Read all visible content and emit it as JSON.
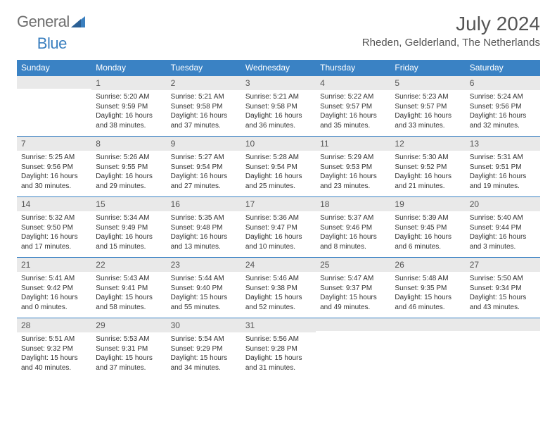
{
  "logo": {
    "text1": "General",
    "text2": "Blue"
  },
  "title": "July 2024",
  "location": "Rheden, Gelderland, The Netherlands",
  "colors": {
    "header_bg": "#3a82c4",
    "header_text": "#ffffff",
    "daynum_bg": "#e9e9e9",
    "border": "#3a82c4",
    "title_color": "#555555"
  },
  "weekdays": [
    "Sunday",
    "Monday",
    "Tuesday",
    "Wednesday",
    "Thursday",
    "Friday",
    "Saturday"
  ],
  "weeks": [
    [
      null,
      {
        "n": "1",
        "sr": "5:20 AM",
        "ss": "9:59 PM",
        "dl": "16 hours and 38 minutes."
      },
      {
        "n": "2",
        "sr": "5:21 AM",
        "ss": "9:58 PM",
        "dl": "16 hours and 37 minutes."
      },
      {
        "n": "3",
        "sr": "5:21 AM",
        "ss": "9:58 PM",
        "dl": "16 hours and 36 minutes."
      },
      {
        "n": "4",
        "sr": "5:22 AM",
        "ss": "9:57 PM",
        "dl": "16 hours and 35 minutes."
      },
      {
        "n": "5",
        "sr": "5:23 AM",
        "ss": "9:57 PM",
        "dl": "16 hours and 33 minutes."
      },
      {
        "n": "6",
        "sr": "5:24 AM",
        "ss": "9:56 PM",
        "dl": "16 hours and 32 minutes."
      }
    ],
    [
      {
        "n": "7",
        "sr": "5:25 AM",
        "ss": "9:56 PM",
        "dl": "16 hours and 30 minutes."
      },
      {
        "n": "8",
        "sr": "5:26 AM",
        "ss": "9:55 PM",
        "dl": "16 hours and 29 minutes."
      },
      {
        "n": "9",
        "sr": "5:27 AM",
        "ss": "9:54 PM",
        "dl": "16 hours and 27 minutes."
      },
      {
        "n": "10",
        "sr": "5:28 AM",
        "ss": "9:54 PM",
        "dl": "16 hours and 25 minutes."
      },
      {
        "n": "11",
        "sr": "5:29 AM",
        "ss": "9:53 PM",
        "dl": "16 hours and 23 minutes."
      },
      {
        "n": "12",
        "sr": "5:30 AM",
        "ss": "9:52 PM",
        "dl": "16 hours and 21 minutes."
      },
      {
        "n": "13",
        "sr": "5:31 AM",
        "ss": "9:51 PM",
        "dl": "16 hours and 19 minutes."
      }
    ],
    [
      {
        "n": "14",
        "sr": "5:32 AM",
        "ss": "9:50 PM",
        "dl": "16 hours and 17 minutes."
      },
      {
        "n": "15",
        "sr": "5:34 AM",
        "ss": "9:49 PM",
        "dl": "16 hours and 15 minutes."
      },
      {
        "n": "16",
        "sr": "5:35 AM",
        "ss": "9:48 PM",
        "dl": "16 hours and 13 minutes."
      },
      {
        "n": "17",
        "sr": "5:36 AM",
        "ss": "9:47 PM",
        "dl": "16 hours and 10 minutes."
      },
      {
        "n": "18",
        "sr": "5:37 AM",
        "ss": "9:46 PM",
        "dl": "16 hours and 8 minutes."
      },
      {
        "n": "19",
        "sr": "5:39 AM",
        "ss": "9:45 PM",
        "dl": "16 hours and 6 minutes."
      },
      {
        "n": "20",
        "sr": "5:40 AM",
        "ss": "9:44 PM",
        "dl": "16 hours and 3 minutes."
      }
    ],
    [
      {
        "n": "21",
        "sr": "5:41 AM",
        "ss": "9:42 PM",
        "dl": "16 hours and 0 minutes."
      },
      {
        "n": "22",
        "sr": "5:43 AM",
        "ss": "9:41 PM",
        "dl": "15 hours and 58 minutes."
      },
      {
        "n": "23",
        "sr": "5:44 AM",
        "ss": "9:40 PM",
        "dl": "15 hours and 55 minutes."
      },
      {
        "n": "24",
        "sr": "5:46 AM",
        "ss": "9:38 PM",
        "dl": "15 hours and 52 minutes."
      },
      {
        "n": "25",
        "sr": "5:47 AM",
        "ss": "9:37 PM",
        "dl": "15 hours and 49 minutes."
      },
      {
        "n": "26",
        "sr": "5:48 AM",
        "ss": "9:35 PM",
        "dl": "15 hours and 46 minutes."
      },
      {
        "n": "27",
        "sr": "5:50 AM",
        "ss": "9:34 PM",
        "dl": "15 hours and 43 minutes."
      }
    ],
    [
      {
        "n": "28",
        "sr": "5:51 AM",
        "ss": "9:32 PM",
        "dl": "15 hours and 40 minutes."
      },
      {
        "n": "29",
        "sr": "5:53 AM",
        "ss": "9:31 PM",
        "dl": "15 hours and 37 minutes."
      },
      {
        "n": "30",
        "sr": "5:54 AM",
        "ss": "9:29 PM",
        "dl": "15 hours and 34 minutes."
      },
      {
        "n": "31",
        "sr": "5:56 AM",
        "ss": "9:28 PM",
        "dl": "15 hours and 31 minutes."
      },
      null,
      null,
      null
    ]
  ],
  "labels": {
    "sunrise": "Sunrise:",
    "sunset": "Sunset:",
    "daylight": "Daylight:"
  }
}
